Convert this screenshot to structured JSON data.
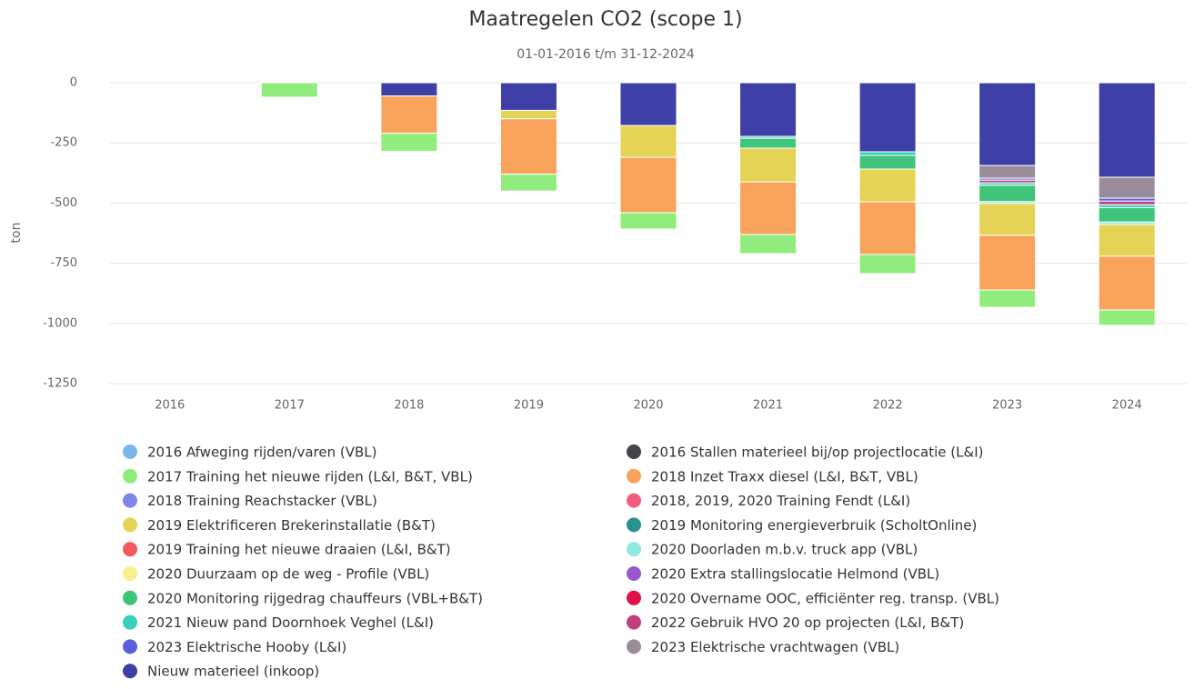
{
  "chart_data": {
    "type": "bar",
    "stacked": true,
    "title": "Maatregelen CO2 (scope 1)",
    "subtitle": "01-01-2016 t/m 31-12-2024",
    "y_label": "ton",
    "categories": [
      "2016",
      "2017",
      "2018",
      "2019",
      "2020",
      "2021",
      "2022",
      "2023",
      "2024"
    ],
    "ylim": [
      -1250,
      0
    ],
    "yticks": [
      0,
      -250,
      -500,
      -750,
      -1000,
      -1250
    ],
    "grid": true,
    "series": [
      {
        "name": "2016 Afweging rijden/varen (VBL)",
        "color": "#7cb5ec",
        "values": [
          0,
          0,
          0,
          0,
          0,
          0,
          0,
          0,
          0
        ]
      },
      {
        "name": "2016 Stallen materieel bij/op projectlocatie (L&I)",
        "color": "#434348",
        "values": [
          0,
          0,
          0,
          0,
          0,
          0,
          0,
          0,
          0
        ]
      },
      {
        "name": "2017 Training het nieuwe rijden (L&I, B&T, VBL)",
        "color": "#90ed7d",
        "values": [
          0,
          -60,
          -75,
          -70,
          -68,
          -79,
          -79,
          -72,
          -64
        ]
      },
      {
        "name": "2018 Inzet Traxx diesel (L&I, B&T, VBL)",
        "color": "#f7a35c",
        "values": [
          0,
          0,
          -155,
          -230,
          -230,
          -219,
          -219,
          -227,
          -223
        ]
      },
      {
        "name": "2018 Training Reachstacker (VBL)",
        "color": "#8085e9",
        "values": [
          0,
          0,
          0,
          0,
          0,
          0,
          0,
          0,
          0
        ]
      },
      {
        "name": "2018, 2019, 2020 Training Fendt (L&I)",
        "color": "#f15c80",
        "values": [
          0,
          0,
          0,
          0,
          0,
          0,
          0,
          0,
          0
        ]
      },
      {
        "name": "2019 Elektrificeren Brekerinstallatie (B&T)",
        "color": "#e4d354",
        "values": [
          0,
          0,
          0,
          -35,
          -132,
          -140,
          -136,
          -132,
          -132
        ]
      },
      {
        "name": "2019 Monitoring energieverbruik (ScholtOnline)",
        "color": "#2b908f",
        "values": [
          0,
          0,
          0,
          0,
          0,
          0,
          0,
          0,
          0
        ]
      },
      {
        "name": "2019 Training het nieuwe draaien (L&I, B&T)",
        "color": "#f45b5b",
        "values": [
          0,
          0,
          0,
          0,
          0,
          0,
          0,
          0,
          0
        ]
      },
      {
        "name": "2020 Doorladen m.b.v. truck app (VBL)",
        "color": "#91e8e1",
        "values": [
          0,
          0,
          0,
          0,
          0,
          0,
          0,
          -8,
          -10
        ]
      },
      {
        "name": "2020 Duurzaam op de weg - Profile (VBL)",
        "color": "#f6f08a",
        "values": [
          0,
          0,
          0,
          0,
          0,
          0,
          0,
          0,
          0
        ]
      },
      {
        "name": "2020 Extra stallingslocatie Helmond (VBL)",
        "color": "#9657cc",
        "values": [
          0,
          0,
          0,
          0,
          0,
          0,
          0,
          0,
          0
        ]
      },
      {
        "name": "2020 Monitoring rijgedrag chauffeurs (VBL+B&T)",
        "color": "#3fc47a",
        "values": [
          0,
          0,
          0,
          0,
          0,
          -41,
          -57,
          -68,
          -60
        ]
      },
      {
        "name": "2020 Overname OOC, efficiënter reg. transp. (VBL)",
        "color": "#e0104b",
        "values": [
          0,
          0,
          0,
          0,
          0,
          0,
          0,
          0,
          0
        ]
      },
      {
        "name": "2021 Nieuw pand Doornhoek Veghel (L&I)",
        "color": "#35d0b8",
        "values": [
          0,
          0,
          0,
          0,
          0,
          -8,
          -15,
          -10,
          -12
        ]
      },
      {
        "name": "2022 Gebruik HVO 20 op projecten (L&I, B&T)",
        "color": "#c0407e",
        "values": [
          0,
          0,
          0,
          0,
          0,
          0,
          0,
          -11,
          -15
        ]
      },
      {
        "name": "2023 Elektrische Hooby (L&I)",
        "color": "#5a5fdc",
        "values": [
          0,
          0,
          0,
          0,
          0,
          0,
          0,
          -8,
          -12
        ]
      },
      {
        "name": "2023 Elektrische vrachtwagen (VBL)",
        "color": "#9a8c98",
        "values": [
          0,
          0,
          0,
          0,
          0,
          0,
          0,
          -53,
          -87
        ]
      },
      {
        "name": "Nieuw materieel (inkoop)",
        "color": "#3f3fa8",
        "values": [
          0,
          0,
          -55,
          -115,
          -178,
          -223,
          -287,
          -344,
          -393
        ]
      }
    ]
  }
}
